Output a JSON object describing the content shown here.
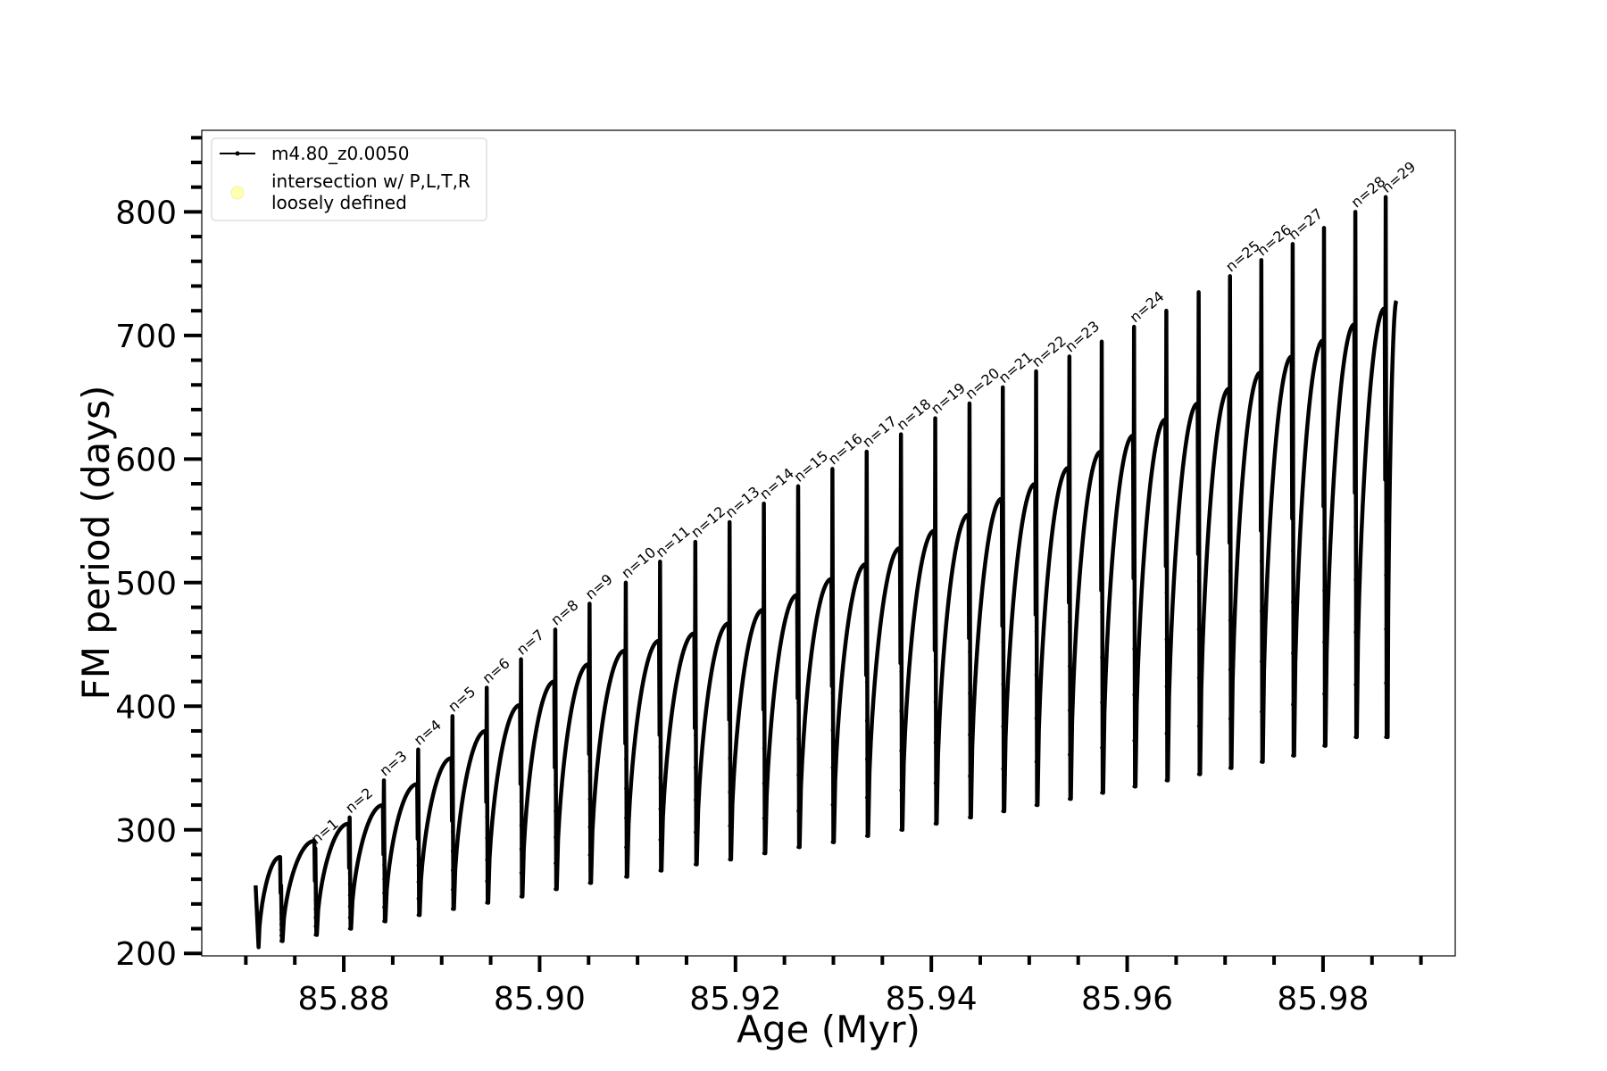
{
  "chart_data": {
    "type": "line",
    "xlabel": "Age (Myr)",
    "ylabel": "FM period (days)",
    "xlim": [
      85.8655,
      85.9935
    ],
    "ylim": [
      198,
      866
    ],
    "x_ticks": [
      85.88,
      85.9,
      85.92,
      85.94,
      85.96,
      85.98
    ],
    "x_tick_labels": [
      "85.88",
      "85.90",
      "85.92",
      "85.94",
      "85.96",
      "85.98"
    ],
    "y_ticks": [
      200,
      300,
      400,
      500,
      600,
      700,
      800
    ],
    "y_tick_labels": [
      "200",
      "300",
      "400",
      "500",
      "600",
      "700",
      "800"
    ],
    "x_minor_step": 0.005,
    "y_minor_step": 20,
    "grid": false,
    "legend": {
      "position": "upper-left",
      "entries": [
        {
          "label": "m4.80_z0.0050",
          "marker": "line-with-dots",
          "color": "#000000"
        },
        {
          "label_lines": [
            "intersection w/ P,L,T,R",
            "loosely defined"
          ],
          "marker": "circle",
          "color": "#ffffb0"
        }
      ]
    },
    "series": [
      {
        "name": "m4.80_z0.0050",
        "color": "#000000",
        "start_x": 85.871,
        "start_y": 255,
        "end_x": 85.9875,
        "end_y": 728,
        "cycles": [
          {
            "n": "",
            "x": 85.8735,
            "peak": 278,
            "trough": 205,
            "spike": 255
          },
          {
            "n": "n=1",
            "x": 85.877,
            "peak": 291,
            "trough": 210,
            "spike": 285
          },
          {
            "n": "n=2",
            "x": 85.8805,
            "peak": 305,
            "trough": 215,
            "spike": 310
          },
          {
            "n": "n=3",
            "x": 85.884,
            "peak": 320,
            "trough": 220,
            "spike": 340
          },
          {
            "n": "n=4",
            "x": 85.8875,
            "peak": 337,
            "trough": 226,
            "spike": 365
          },
          {
            "n": "n=5",
            "x": 85.891,
            "peak": 358,
            "trough": 231,
            "spike": 392
          },
          {
            "n": "n=6",
            "x": 85.8945,
            "peak": 380,
            "trough": 236,
            "spike": 415
          },
          {
            "n": "n=7",
            "x": 85.898,
            "peak": 401,
            "trough": 241,
            "spike": 438
          },
          {
            "n": "n=8",
            "x": 85.9015,
            "peak": 420,
            "trough": 246,
            "spike": 462
          },
          {
            "n": "n=9",
            "x": 85.905,
            "peak": 434,
            "trough": 252,
            "spike": 483
          },
          {
            "n": "n=10",
            "x": 85.9087,
            "peak": 445,
            "trough": 257,
            "spike": 500
          },
          {
            "n": "n=11",
            "x": 85.9122,
            "peak": 453,
            "trough": 262,
            "spike": 517
          },
          {
            "n": "n=12",
            "x": 85.9158,
            "peak": 459,
            "trough": 267,
            "spike": 533
          },
          {
            "n": "n=13",
            "x": 85.9193,
            "peak": 467,
            "trough": 272,
            "spike": 549
          },
          {
            "n": "n=14",
            "x": 85.9228,
            "peak": 478,
            "trough": 276,
            "spike": 564
          },
          {
            "n": "n=15",
            "x": 85.9263,
            "peak": 490,
            "trough": 281,
            "spike": 578
          },
          {
            "n": "n=16",
            "x": 85.9298,
            "peak": 503,
            "trough": 286,
            "spike": 592
          },
          {
            "n": "n=17",
            "x": 85.9333,
            "peak": 515,
            "trough": 290,
            "spike": 606
          },
          {
            "n": "n=18",
            "x": 85.9368,
            "peak": 528,
            "trough": 295,
            "spike": 620
          },
          {
            "n": "n=19",
            "x": 85.9403,
            "peak": 542,
            "trough": 300,
            "spike": 633
          },
          {
            "n": "n=20",
            "x": 85.9438,
            "peak": 555,
            "trough": 305,
            "spike": 645
          },
          {
            "n": "n=21",
            "x": 85.9472,
            "peak": 568,
            "trough": 310,
            "spike": 658
          },
          {
            "n": "n=22",
            "x": 85.9506,
            "peak": 580,
            "trough": 315,
            "spike": 671
          },
          {
            "n": "n=23",
            "x": 85.954,
            "peak": 593,
            "trough": 320,
            "spike": 683
          },
          {
            "n": "",
            "x": 85.9573,
            "peak": 606,
            "trough": 325,
            "spike": 695
          },
          {
            "n": "n=24",
            "x": 85.9606,
            "peak": 619,
            "trough": 330,
            "spike": 707
          },
          {
            "n": "",
            "x": 85.9639,
            "peak": 632,
            "trough": 335,
            "spike": 720
          },
          {
            "n": "",
            "x": 85.9672,
            "peak": 645,
            "trough": 340,
            "spike": 735
          },
          {
            "n": "n=25",
            "x": 85.9704,
            "peak": 657,
            "trough": 345,
            "spike": 748
          },
          {
            "n": "n=26",
            "x": 85.9736,
            "peak": 670,
            "trough": 350,
            "spike": 761
          },
          {
            "n": "n=27",
            "x": 85.9768,
            "peak": 683,
            "trough": 355,
            "spike": 774
          },
          {
            "n": "",
            "x": 85.98,
            "peak": 696,
            "trough": 360,
            "spike": 787
          },
          {
            "n": "n=28",
            "x": 85.9832,
            "peak": 709,
            "trough": 368,
            "spike": 800
          },
          {
            "n": "n=29",
            "x": 85.9863,
            "peak": 722,
            "trough": 375,
            "spike": 812
          }
        ]
      }
    ]
  }
}
